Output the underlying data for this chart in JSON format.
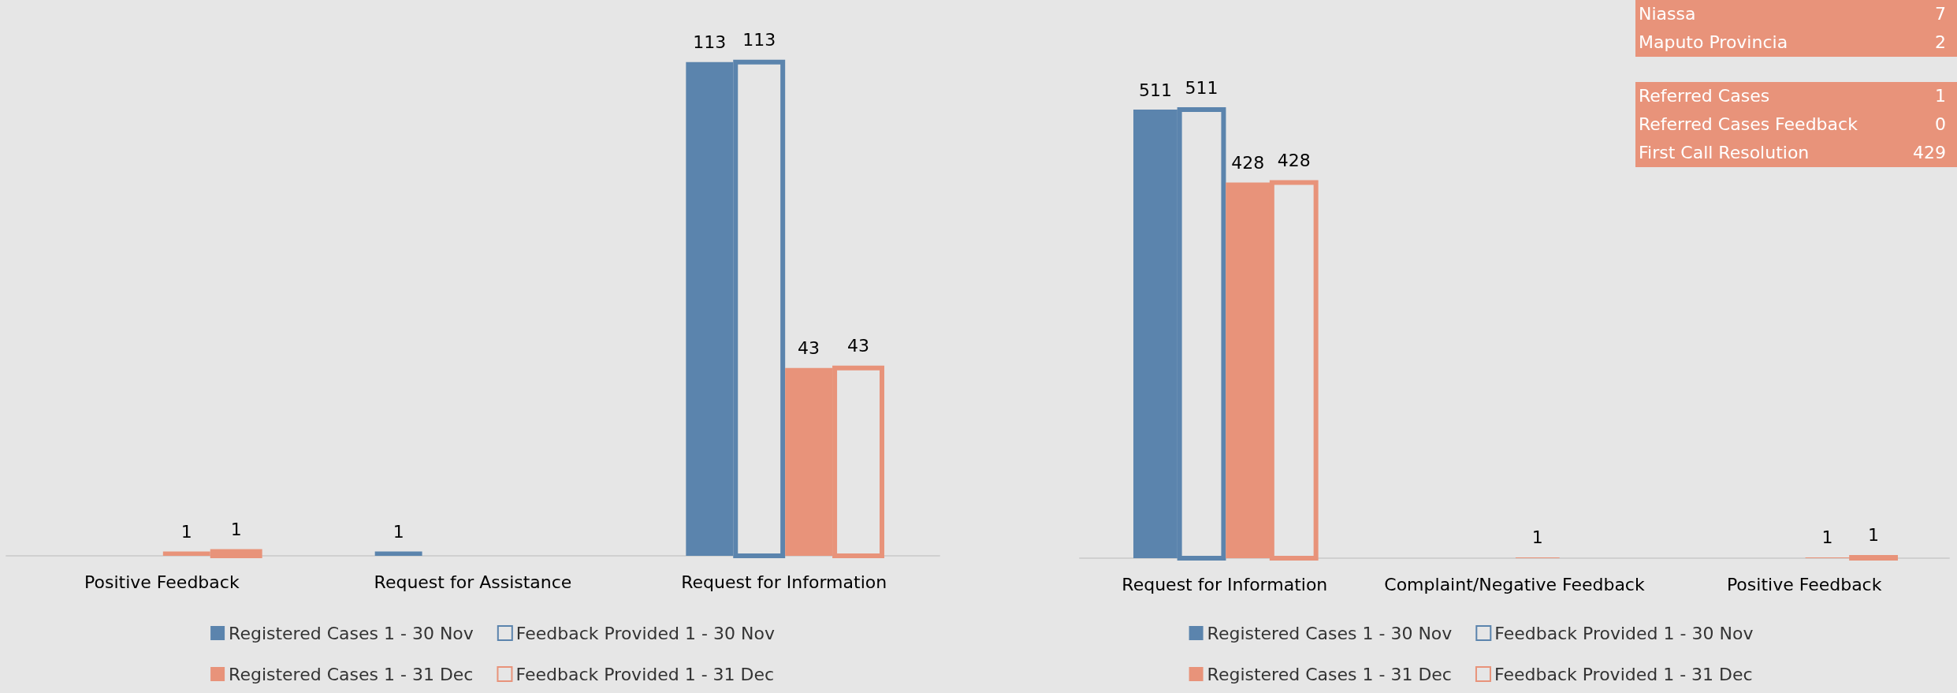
{
  "chart_data": [
    {
      "type": "bar",
      "categories": [
        "Positive Feedback",
        "Request for Assistance",
        "Request for Information"
      ],
      "data_labels": true,
      "legend": "bottom",
      "series": [
        {
          "name": "Registered Cases 1 - 30 Nov",
          "color": "#5b84ad",
          "values": [
            null,
            1,
            113
          ]
        },
        {
          "name": "Feedback Provided 1 - 30 Nov",
          "color": "#5b84ad",
          "values": [
            null,
            null,
            113
          ]
        },
        {
          "name": "Registered Cases 1 - 31 Dec",
          "color": "#e8937a",
          "values": [
            1,
            null,
            43
          ]
        },
        {
          "name": "Feedback Provided 1 - 31 Dec",
          "color": "#e8937a",
          "values": [
            1,
            null,
            43
          ]
        }
      ]
    },
    {
      "type": "bar",
      "categories": [
        "Request for Information",
        "Complaint/Negative Feedback",
        "Positive Feedback"
      ],
      "data_labels": true,
      "legend": "bottom",
      "series": [
        {
          "name": "Registered Cases 1 - 30 Nov",
          "color": "#5b84ad",
          "values": [
            511,
            null,
            null
          ]
        },
        {
          "name": "Feedback Provided 1 - 30 Nov",
          "color": "#5b84ad",
          "values": [
            511,
            null,
            null
          ]
        },
        {
          "name": "Registered Cases 1 - 31 Dec",
          "color": "#e8937a",
          "values": [
            428,
            1,
            1
          ]
        },
        {
          "name": "Feedback Provided 1 - 31 Dec",
          "color": "#e8937a",
          "values": [
            428,
            null,
            1
          ]
        }
      ]
    },
    {
      "type": "other",
      "annotations": [
        "Niassa",
        "7",
        "Maputo Provincia",
        "2",
        "Referred Cases",
        "1",
        "Referred Cases Feedback",
        "0",
        "First Call Resolution",
        "429"
      ]
    }
  ]
}
